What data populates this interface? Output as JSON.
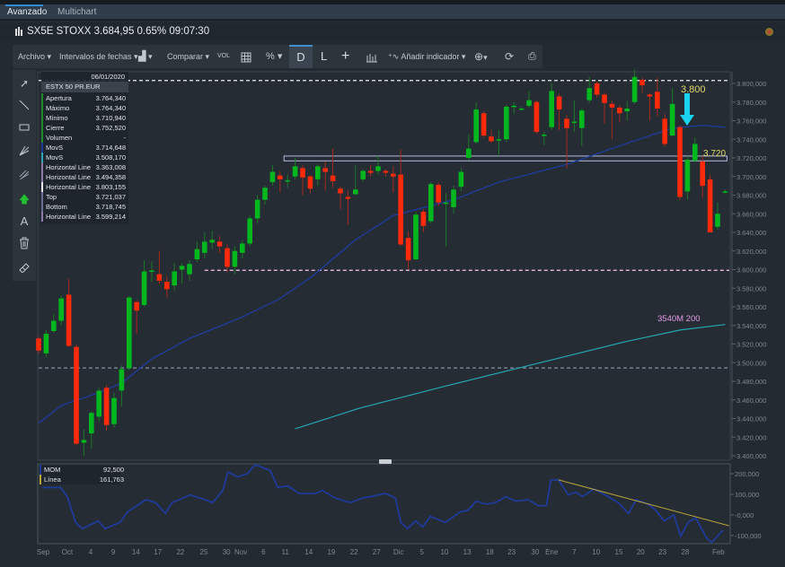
{
  "tabs": [
    {
      "label": "Avanzado",
      "active": true
    },
    {
      "label": "Multichart",
      "active": false
    }
  ],
  "header": {
    "title": "SX5E STOXX 3.684,95 0.65% 09:07:30"
  },
  "toolbar": {
    "archivo": "Archivo ▾",
    "intervalos": "Intervalos de fechas ▾",
    "chart_type": "▾",
    "comparar": "Comparar ▾",
    "vol": "VOL",
    "grid_icon": "grid-icon",
    "percent": "% ▾",
    "daily": "D",
    "log": "L",
    "crosshair": "+",
    "indicator": "Añadir indicador ▾",
    "zoom": "▾"
  },
  "left_tools": [
    "pointer-icon",
    "line-icon",
    "rectangle-icon",
    "fibonacci-icon",
    "channel-icon",
    "arrow-up-icon",
    "text-icon",
    "trash-icon",
    "eraser-icon"
  ],
  "info_panel": {
    "date": "06/01/2020",
    "instrument": "ESTX 50 PR.EUR",
    "rows": [
      {
        "k": "Apertura",
        "v": "3.764,340",
        "color": "#1e8a2a"
      },
      {
        "k": "Máximo",
        "v": "3.764,340",
        "color": "#1e8a2a"
      },
      {
        "k": "Mínimo",
        "v": "3.710,940",
        "color": "#1e8a2a"
      },
      {
        "k": "Cierre",
        "v": "3.752,520",
        "color": "#1e8a2a"
      },
      {
        "k": "Volumen",
        "v": "-",
        "color": "#1e8a2a"
      },
      {
        "k": "MovS",
        "v": "3.714,648",
        "color": "#1f3a9a"
      },
      {
        "k": "MovS",
        "v": "3.508,170",
        "color": "#2aa6b6"
      },
      {
        "k": "Horizontal Line",
        "v": "3.363,008",
        "color": "#8c7aa8"
      },
      {
        "k": "Horizontal Line",
        "v": "3.494,358",
        "color": "#8c7aa8"
      },
      {
        "k": "Horizontal Line",
        "v": "3.803,155",
        "color": "#e8e8ee"
      },
      {
        "k": "Top",
        "v": "3.721,037",
        "color": "#6a6f9a"
      },
      {
        "k": "Bottom",
        "v": "3.718,745",
        "color": "#6a6f9a"
      },
      {
        "k": "Horizontal Line",
        "v": "3.599,214",
        "color": "#8c7aa8"
      }
    ]
  },
  "annotations": {
    "resistance": "3.800",
    "support": "3.720",
    "ma200": "3540M 200",
    "arrow_color": "#19d3f0",
    "label_color": "#e3d96a",
    "ma200_color": "#e59be8"
  },
  "colors": {
    "up": "#00b81e",
    "down": "#ff2a0a",
    "ma50": "#1f3a9a",
    "ma200": "#22a8b0",
    "mom": "#1f3a9a",
    "trend": "#b9a63a"
  },
  "chart_data": [
    {
      "type": "candlestick",
      "ylim": [
        3400,
        3800
      ],
      "yticks": [
        "3.400,000",
        "3.420,000",
        "3.440,000",
        "3.460,000",
        "3.480,000",
        "3.500,000",
        "3.520,000",
        "3.540,000",
        "3.560,000",
        "3.580,000",
        "3.600,000",
        "3.620,000",
        "3.640,000",
        "3.660,000",
        "3.680,000",
        "3.700,000",
        "3.720,000",
        "3.740,000",
        "3.760,000",
        "3.780,000",
        "3.800,000"
      ],
      "xticks": [
        {
          "label": "Sep",
          "at": 0.6
        },
        {
          "label": "Oct",
          "at": 3.8
        },
        {
          "label": "4",
          "at": 6.9
        },
        {
          "label": "9",
          "at": 9.9
        },
        {
          "label": "14",
          "at": 12.9
        },
        {
          "label": "17",
          "at": 15.8
        },
        {
          "label": "22",
          "at": 18.8
        },
        {
          "label": "25",
          "at": 21.9
        },
        {
          "label": "30",
          "at": 24.9
        },
        {
          "label": "Nov",
          "at": 26.8
        },
        {
          "label": "6",
          "at": 29.8
        },
        {
          "label": "11",
          "at": 32.7
        },
        {
          "label": "14",
          "at": 35.8
        },
        {
          "label": "19",
          "at": 38.8
        },
        {
          "label": "22",
          "at": 41.8
        },
        {
          "label": "27",
          "at": 44.8
        },
        {
          "label": "Dic",
          "at": 47.7
        },
        {
          "label": "5",
          "at": 50.8
        },
        {
          "label": "10",
          "at": 53.8
        },
        {
          "label": "13",
          "at": 56.8
        },
        {
          "label": "18",
          "at": 59.8
        },
        {
          "label": "23",
          "at": 62.7
        },
        {
          "label": "30",
          "at": 65.8
        },
        {
          "label": "Ene",
          "at": 68
        },
        {
          "label": "7",
          "at": 71
        },
        {
          "label": "10",
          "at": 73.9
        },
        {
          "label": "15",
          "at": 76.9
        },
        {
          "label": "20",
          "at": 79.8
        },
        {
          "label": "23",
          "at": 82.7
        },
        {
          "label": "28",
          "at": 85.7
        },
        {
          "label": "Feb",
          "at": 90.1
        }
      ],
      "ohlc": [
        [
          3526,
          3528,
          3510,
          3513
        ],
        [
          3510,
          3535,
          3506,
          3531
        ],
        [
          3534,
          3552,
          3532,
          3545
        ],
        [
          3545,
          3572,
          3540,
          3569
        ],
        [
          3573,
          3590,
          3517,
          3518
        ],
        [
          3517,
          3519,
          3411,
          3413
        ],
        [
          3414,
          3428,
          3400,
          3417
        ],
        [
          3424,
          3448,
          3408,
          3446
        ],
        [
          3442,
          3473,
          3437,
          3470
        ],
        [
          3473,
          3476,
          3427,
          3433
        ],
        [
          3434,
          3468,
          3430,
          3462
        ],
        [
          3470,
          3497,
          3453,
          3493
        ],
        [
          3494,
          3572,
          3492,
          3570
        ],
        [
          3565,
          3567,
          3531,
          3556
        ],
        [
          3562,
          3610,
          3560,
          3598
        ],
        [
          3599,
          3609,
          3587,
          3599
        ],
        [
          3595,
          3620,
          3585,
          3588
        ],
        [
          3587,
          3593,
          3570,
          3579
        ],
        [
          3583,
          3607,
          3578,
          3598
        ],
        [
          3600,
          3607,
          3585,
          3604
        ],
        [
          3595,
          3610,
          3588,
          3606
        ],
        [
          3611,
          3630,
          3608,
          3622
        ],
        [
          3618,
          3640,
          3612,
          3630
        ],
        [
          3629,
          3642,
          3622,
          3632
        ],
        [
          3630,
          3636,
          3618,
          3625
        ],
        [
          3623,
          3627,
          3597,
          3603
        ],
        [
          3603,
          3625,
          3595,
          3620
        ],
        [
          3618,
          3632,
          3612,
          3628
        ],
        [
          3628,
          3658,
          3625,
          3655
        ],
        [
          3655,
          3680,
          3650,
          3675
        ],
        [
          3675,
          3690,
          3670,
          3688
        ],
        [
          3694,
          3712,
          3690,
          3705
        ],
        [
          3701,
          3706,
          3683,
          3697
        ],
        [
          3696,
          3702,
          3688,
          3696
        ],
        [
          3700,
          3720,
          3697,
          3711
        ],
        [
          3709,
          3712,
          3680,
          3699
        ],
        [
          3700,
          3702,
          3682,
          3687
        ],
        [
          3697,
          3713,
          3690,
          3711
        ],
        [
          3709,
          3716,
          3685,
          3705
        ],
        [
          3701,
          3730,
          3688,
          3695
        ],
        [
          3687,
          3689,
          3665,
          3682
        ],
        [
          3678,
          3685,
          3648,
          3676
        ],
        [
          3681,
          3712,
          3680,
          3686
        ],
        [
          3697,
          3708,
          3695,
          3706
        ],
        [
          3706,
          3712,
          3700,
          3704
        ],
        [
          3706,
          3722,
          3702,
          3711
        ],
        [
          3706,
          3708,
          3700,
          3704
        ],
        [
          3703,
          3711,
          3683,
          3700
        ],
        [
          3702,
          3729,
          3625,
          3627
        ],
        [
          3634,
          3641,
          3600,
          3610
        ],
        [
          3611,
          3662,
          3610,
          3659
        ],
        [
          3662,
          3665,
          3640,
          3647
        ],
        [
          3652,
          3694,
          3650,
          3692
        ],
        [
          3691,
          3694,
          3668,
          3672
        ],
        [
          3672,
          3682,
          3625,
          3672
        ],
        [
          3667,
          3690,
          3660,
          3686
        ],
        [
          3689,
          3709,
          3684,
          3705
        ],
        [
          3720,
          3745,
          3718,
          3730
        ],
        [
          3737,
          3780,
          3735,
          3772
        ],
        [
          3768,
          3770,
          3742,
          3744
        ],
        [
          3743,
          3750,
          3736,
          3738
        ],
        [
          3739,
          3750,
          3722,
          3740
        ],
        [
          3740,
          3777,
          3737,
          3775
        ],
        [
          3776,
          3780,
          3767,
          3776
        ],
        [
          3773,
          3775,
          3771,
          3773
        ],
        [
          3776,
          3792,
          3774,
          3782
        ],
        [
          3780,
          3782,
          3746,
          3748
        ],
        [
          3745,
          3748,
          3734,
          3745
        ],
        [
          3753,
          3800,
          3750,
          3792
        ],
        [
          3786,
          3789,
          3750,
          3772
        ],
        [
          3762,
          3766,
          3709,
          3752
        ],
        [
          3759,
          3782,
          3748,
          3759
        ],
        [
          3752,
          3773,
          3733,
          3771
        ],
        [
          3782,
          3807,
          3779,
          3795
        ],
        [
          3800,
          3802,
          3785,
          3788
        ],
        [
          3788,
          3790,
          3757,
          3779
        ],
        [
          3778,
          3782,
          3740,
          3774
        ],
        [
          3774,
          3777,
          3758,
          3768
        ],
        [
          3770,
          3781,
          3760,
          3773
        ],
        [
          3780,
          3815,
          3778,
          3807
        ],
        [
          3804,
          3806,
          3790,
          3798
        ],
        [
          3788,
          3790,
          3760,
          3786
        ],
        [
          3791,
          3806,
          3765,
          3773
        ],
        [
          3762,
          3767,
          3732,
          3735
        ],
        [
          3744,
          3795,
          3743,
          3778
        ],
        [
          3753,
          3755,
          3675,
          3678
        ],
        [
          3684,
          3722,
          3675,
          3718
        ],
        [
          3717,
          3742,
          3715,
          3735
        ],
        [
          3716,
          3722,
          3677,
          3690
        ],
        [
          3697,
          3702,
          3640,
          3640
        ],
        [
          3646,
          3672,
          3643,
          3660
        ],
        [
          3684,
          3686,
          3682,
          3684
        ]
      ],
      "ma50": [
        [
          0,
          3435
        ],
        [
          3,
          3454
        ],
        [
          8,
          3468
        ],
        [
          11,
          3478
        ],
        [
          15,
          3504
        ],
        [
          20,
          3526
        ],
        [
          27,
          3549
        ],
        [
          32,
          3569
        ],
        [
          36,
          3591
        ],
        [
          42,
          3632
        ],
        [
          47,
          3658
        ],
        [
          55,
          3675
        ],
        [
          61,
          3694
        ],
        [
          70,
          3713
        ],
        [
          77,
          3733
        ],
        [
          84,
          3752
        ],
        [
          88,
          3755
        ],
        [
          91,
          3753
        ]
      ],
      "ma200": [
        [
          34,
          3429
        ],
        [
          42.5,
          3451
        ],
        [
          54,
          3475
        ],
        [
          66,
          3499
        ],
        [
          78,
          3523
        ],
        [
          85,
          3535
        ],
        [
          91,
          3541
        ]
      ],
      "hlines": [
        {
          "value": 3803.155,
          "from": 0,
          "style": "white"
        },
        {
          "value": 3599.214,
          "from": 22,
          "style": "pink"
        },
        {
          "value": 3494.358,
          "from": 0,
          "style": "grey"
        }
      ],
      "channel": {
        "top": 3721.037,
        "bottom": 3718.745,
        "from": 33,
        "to": 91
      }
    },
    {
      "type": "line",
      "ylim": [
        -130,
        240
      ],
      "yticks": [
        {
          "label": "200,000",
          "v": 200
        },
        {
          "label": "100,000",
          "v": 100
        },
        {
          "label": "-0,000",
          "v": 0
        },
        {
          "label": "-100,000",
          "v": -100
        }
      ],
      "legend": [
        {
          "name": "MOM",
          "value": "92,500"
        },
        {
          "name": "Línea",
          "value": "161,763"
        }
      ],
      "mom": [
        [
          0.5,
          133
        ],
        [
          2.9,
          133
        ],
        [
          3.8,
          89
        ],
        [
          4.9,
          -36
        ],
        [
          5.8,
          -66
        ],
        [
          7.9,
          -29
        ],
        [
          8.8,
          -66
        ],
        [
          10.8,
          -36
        ],
        [
          11.8,
          15
        ],
        [
          14.2,
          74
        ],
        [
          15.5,
          60
        ],
        [
          16.8,
          8
        ],
        [
          17.7,
          60
        ],
        [
          20.1,
          97
        ],
        [
          22.1,
          74
        ],
        [
          23.1,
          60
        ],
        [
          24.4,
          119
        ],
        [
          25.1,
          207
        ],
        [
          26.4,
          185
        ],
        [
          27.7,
          200
        ],
        [
          28.7,
          244
        ],
        [
          30.7,
          215
        ],
        [
          31.7,
          133
        ],
        [
          33,
          141
        ],
        [
          34.6,
          104
        ],
        [
          36.7,
          104
        ],
        [
          37.6,
          119
        ],
        [
          39.3,
          82
        ],
        [
          41.3,
          60
        ],
        [
          43,
          82
        ],
        [
          46,
          104
        ],
        [
          47.3,
          82
        ],
        [
          48,
          -36
        ],
        [
          48.9,
          -66
        ],
        [
          50,
          -29
        ],
        [
          50.9,
          -58
        ],
        [
          51.9,
          -7
        ],
        [
          53.9,
          -36
        ],
        [
          55.9,
          15
        ],
        [
          56.9,
          22
        ],
        [
          58,
          67
        ],
        [
          59.3,
          52
        ],
        [
          60.6,
          60
        ],
        [
          61.9,
          89
        ],
        [
          63.2,
          67
        ],
        [
          64.9,
          74
        ],
        [
          66.2,
          45
        ],
        [
          67.3,
          45
        ],
        [
          67.9,
          170
        ],
        [
          68.9,
          170
        ],
        [
          70.2,
          97
        ],
        [
          71.2,
          111
        ],
        [
          72.1,
          89
        ],
        [
          73.6,
          126
        ],
        [
          75.1,
          97
        ],
        [
          76.8,
          60
        ],
        [
          78.2,
          8
        ],
        [
          79.2,
          74
        ],
        [
          80.8,
          52
        ],
        [
          81.8,
          23
        ],
        [
          82.9,
          -29
        ],
        [
          84.2,
          0
        ],
        [
          85.1,
          -103
        ],
        [
          86.1,
          -36
        ],
        [
          87.1,
          -14
        ],
        [
          88.5,
          -110
        ],
        [
          89.2,
          -133
        ],
        [
          90.7,
          -74
        ]
      ],
      "trendline": [
        [
          68.9,
          170
        ],
        [
          91.5,
          -52
        ]
      ]
    }
  ]
}
